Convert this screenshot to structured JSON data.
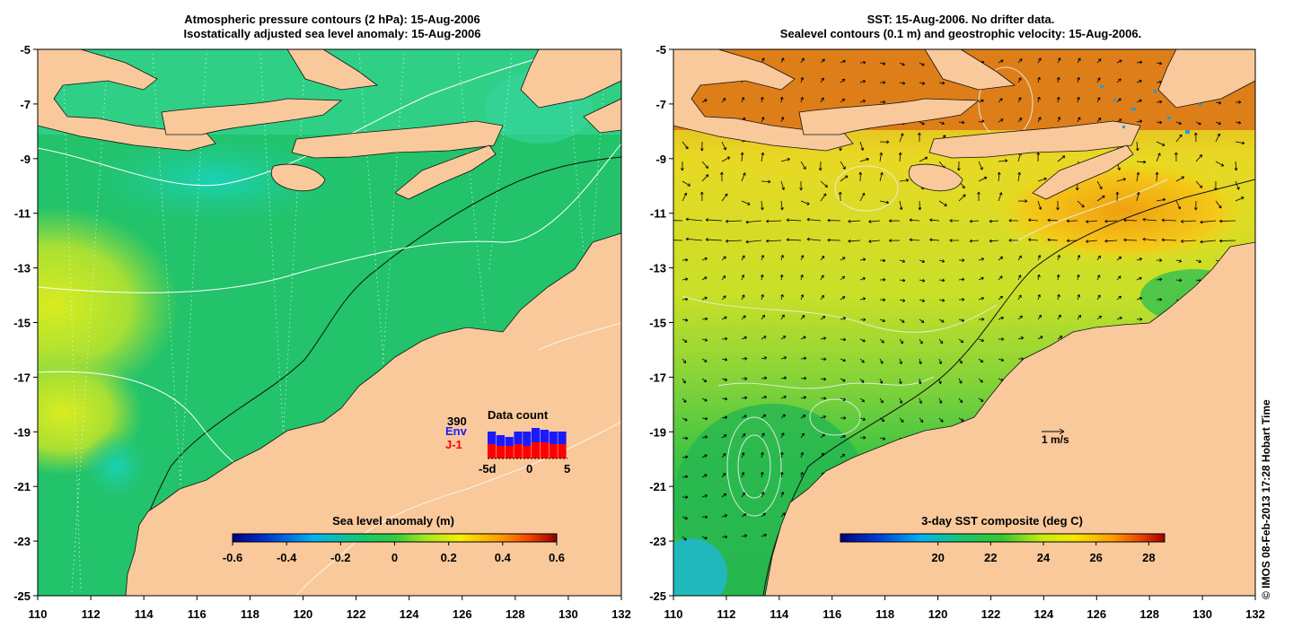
{
  "left_panel": {
    "title_line1": "Atmospheric pressure contours (2 hPa): 15-Aug-2006",
    "title_line2": "Isostatically adjusted sea level anomaly: 15-Aug-2006",
    "colorbar": {
      "label": "Sea level anomaly (m)",
      "ticks": [
        "-0.6",
        "-0.4",
        "-0.2",
        "0",
        "0.2",
        "0.4",
        "0.6"
      ]
    },
    "data_count": {
      "title": "Data count",
      "total": "390",
      "env_label": "Env",
      "j1_label": "J-1",
      "ticks": [
        "-5d",
        "0",
        "5"
      ],
      "env_color": "#1a1aff",
      "j1_color": "#ff0000"
    }
  },
  "right_panel": {
    "title_line1": "SST: 15-Aug-2006. No drifter data.",
    "title_line2": "Sealevel contours (0.1 m) and geostrophic velocity: 15-Aug-2006.",
    "colorbar": {
      "label": "3-day SST composite (deg C)",
      "ticks": [
        "20",
        "22",
        "24",
        "26",
        "28"
      ]
    },
    "velocity_scale_label": "1 m/s"
  },
  "axes": {
    "longitude_ticks": [
      "110",
      "112",
      "114",
      "116",
      "118",
      "120",
      "122",
      "124",
      "126",
      "128",
      "130",
      "132"
    ],
    "latitude_ticks": [
      "-5",
      "-7",
      "-9",
      "-11",
      "-13",
      "-15",
      "-17",
      "-19",
      "-21",
      "-23",
      "-25"
    ]
  },
  "colors": {
    "land": "#f9c99b",
    "sea_anomaly_base": "#22c36a",
    "sst_base": "#34c24a"
  },
  "credit": "© IMOS 08-Feb-2013 17:28 Hobart Time"
}
